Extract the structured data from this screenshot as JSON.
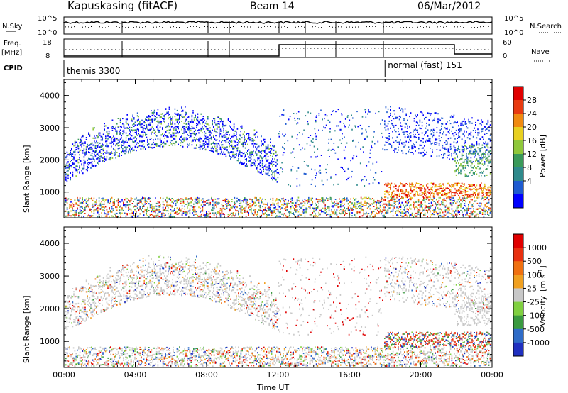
{
  "header": {
    "station": "Kapuskasing (fitACF)",
    "beam": "Beam 14",
    "date": "06/Mar/2012"
  },
  "top_panels": {
    "nsky_label": "N.Sky",
    "nsky_ticks": [
      "10^5",
      "10^0"
    ],
    "nsearch_label": "N.Search",
    "nsearch_ticks": [
      "10^5",
      "10^0"
    ],
    "freq_label": "Freq.",
    "freq_unit": "[MHz]",
    "freq_ticks": [
      "18",
      "8"
    ],
    "nave_label": "Nave",
    "nave_ticks": [
      "60",
      "0"
    ],
    "cpid_label": "CPID",
    "cpid_segments": [
      {
        "name": "themis 3300",
        "start_hour": 0,
        "end_hour": 18
      },
      {
        "name": "normal (fast) 151",
        "start_hour": 18,
        "end_hour": 24
      }
    ]
  },
  "chart_data": [
    {
      "type": "heatmap",
      "panel": "power",
      "xlabel": "Time UT",
      "ylabel": "Slant Range [km]",
      "xlim": [
        0,
        24
      ],
      "ylim": [
        200,
        4500
      ],
      "xticks": [
        "00:00",
        "04:00",
        "08:00",
        "12:00",
        "16:00",
        "20:00",
        "00:00"
      ],
      "yticks": [
        1000,
        2000,
        3000,
        4000
      ],
      "colorbar": {
        "label": "Power [dB]",
        "ticks": [
          "28",
          "24",
          "20",
          "16",
          "12",
          "8",
          "4"
        ],
        "colors": [
          "#0000ff",
          "#1e5bd0",
          "#2f8a8c",
          "#3a9a5a",
          "#8fc83a",
          "#e8d020",
          "#f08a10",
          "#e83a10",
          "#e00000"
        ]
      }
    },
    {
      "type": "heatmap",
      "panel": "velocity",
      "xlabel": "Time UT",
      "ylabel": "Slant Range [km]",
      "xlim": [
        0,
        24
      ],
      "ylim": [
        200,
        4500
      ],
      "xticks": [
        "00:00",
        "04:00",
        "08:00",
        "12:00",
        "16:00",
        "20:00",
        "00:00"
      ],
      "yticks": [
        1000,
        2000,
        3000,
        4000
      ],
      "colorbar": {
        "label": "Velocity",
        "label_unit": "[m s",
        "label_exp": "-1",
        "label_close": "]",
        "ticks": [
          "1000",
          "500",
          "100",
          "25",
          "-25",
          "-100",
          "-500",
          "-1000"
        ],
        "colors": [
          "#2030c0",
          "#2f6cc8",
          "#3a9a40",
          "#80d040",
          "#c8c8c8",
          "#f0a020",
          "#f07010",
          "#e83010",
          "#e00000"
        ]
      }
    }
  ]
}
